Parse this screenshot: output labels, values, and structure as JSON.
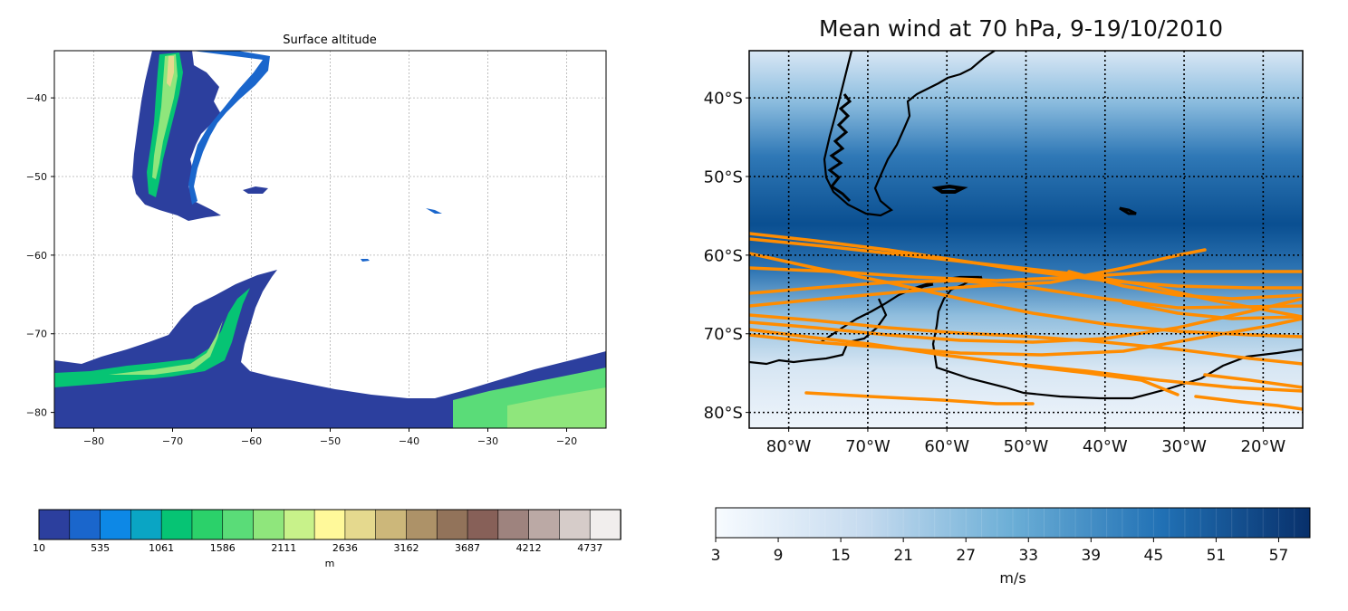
{
  "left_panel": {
    "title": "Surface altitude",
    "x_ticks": [
      {
        "value": -80,
        "label": "−80"
      },
      {
        "value": -70,
        "label": "−70"
      },
      {
        "value": -60,
        "label": "−60"
      },
      {
        "value": -50,
        "label": "−50"
      },
      {
        "value": -40,
        "label": "−40"
      },
      {
        "value": -30,
        "label": "−30"
      },
      {
        "value": -20,
        "label": "−20"
      }
    ],
    "y_ticks": [
      {
        "value": -40,
        "label": "−40"
      },
      {
        "value": -50,
        "label": "−50"
      },
      {
        "value": -60,
        "label": "−60"
      },
      {
        "value": -70,
        "label": "−70"
      },
      {
        "value": -80,
        "label": "−80"
      }
    ],
    "xlim": [
      -85,
      -15
    ],
    "ylim": [
      -82,
      -34
    ],
    "colorbar": {
      "unit_label": "m",
      "tick_labels": [
        "10",
        "535",
        "1061",
        "1586",
        "2111",
        "2636",
        "3162",
        "3687",
        "4212",
        "4737"
      ],
      "colors": [
        "#2c3f9e",
        "#1a66cc",
        "#0d88e6",
        "#0aa5c4",
        "#06c474",
        "#2bd16a",
        "#5adc78",
        "#8fe67c",
        "#c8f28a",
        "#fff99a",
        "#e5d98e",
        "#ccb77a",
        "#ad9268",
        "#92735a",
        "#876058",
        "#9e837e",
        "#bba9a5",
        "#d6ccc9",
        "#f1eeed"
      ]
    }
  },
  "right_panel": {
    "title": "Mean wind at 70 hPa, 9-19/10/2010",
    "x_ticks": [
      {
        "value": -80,
        "label": "80°W"
      },
      {
        "value": -70,
        "label": "70°W"
      },
      {
        "value": -60,
        "label": "60°W"
      },
      {
        "value": -50,
        "label": "50°W"
      },
      {
        "value": -40,
        "label": "40°W"
      },
      {
        "value": -30,
        "label": "30°W"
      },
      {
        "value": -20,
        "label": "20°W"
      }
    ],
    "y_ticks": [
      {
        "value": -40,
        "label": "40°S"
      },
      {
        "value": -50,
        "label": "50°S"
      },
      {
        "value": -60,
        "label": "60°S"
      },
      {
        "value": -70,
        "label": "70°S"
      },
      {
        "value": -80,
        "label": "80°S"
      }
    ],
    "xlim": [
      -85,
      -15
    ],
    "ylim": [
      -82,
      -34
    ],
    "colorbar": {
      "unit_label": "m/s",
      "tick_labels": [
        "3",
        "9",
        "15",
        "21",
        "27",
        "33",
        "39",
        "45",
        "51",
        "57"
      ],
      "range": [
        3,
        60
      ],
      "color_low": "#f4f9ff",
      "color_high": "#08306b"
    },
    "track_color": "#ff8c00",
    "coast_color": "#000000"
  }
}
